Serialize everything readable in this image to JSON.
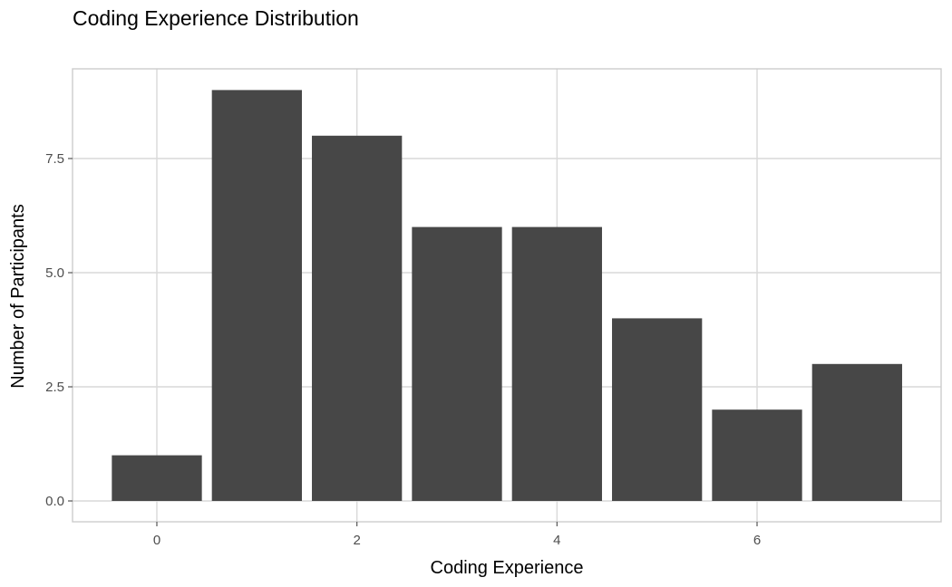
{
  "chart_data": {
    "type": "bar",
    "title": "Coding Experience Distribution",
    "xlabel": "Coding Experience",
    "ylabel": "Number of Participants",
    "x": [
      0,
      1,
      2,
      3,
      4,
      5,
      6,
      7
    ],
    "values": [
      1,
      9,
      8,
      6,
      6,
      4,
      2,
      3
    ],
    "xlim": [
      -0.5,
      7.5
    ],
    "ylim": [
      0,
      9
    ],
    "x_ticks": [
      0,
      2,
      4,
      6
    ],
    "x_tick_labels": [
      "0",
      "2",
      "4",
      "6"
    ],
    "y_ticks": [
      0,
      2.5,
      5,
      7.5
    ],
    "y_tick_labels": [
      "0.0",
      "2.5",
      "5.0",
      "7.5"
    ],
    "grid": true,
    "legend": "none",
    "colors": {
      "bar": "#474747",
      "grid": "#d9d9d9",
      "panel_border": "#cccccc",
      "tick_text": "#4d4d4d",
      "text": "#000000"
    }
  }
}
